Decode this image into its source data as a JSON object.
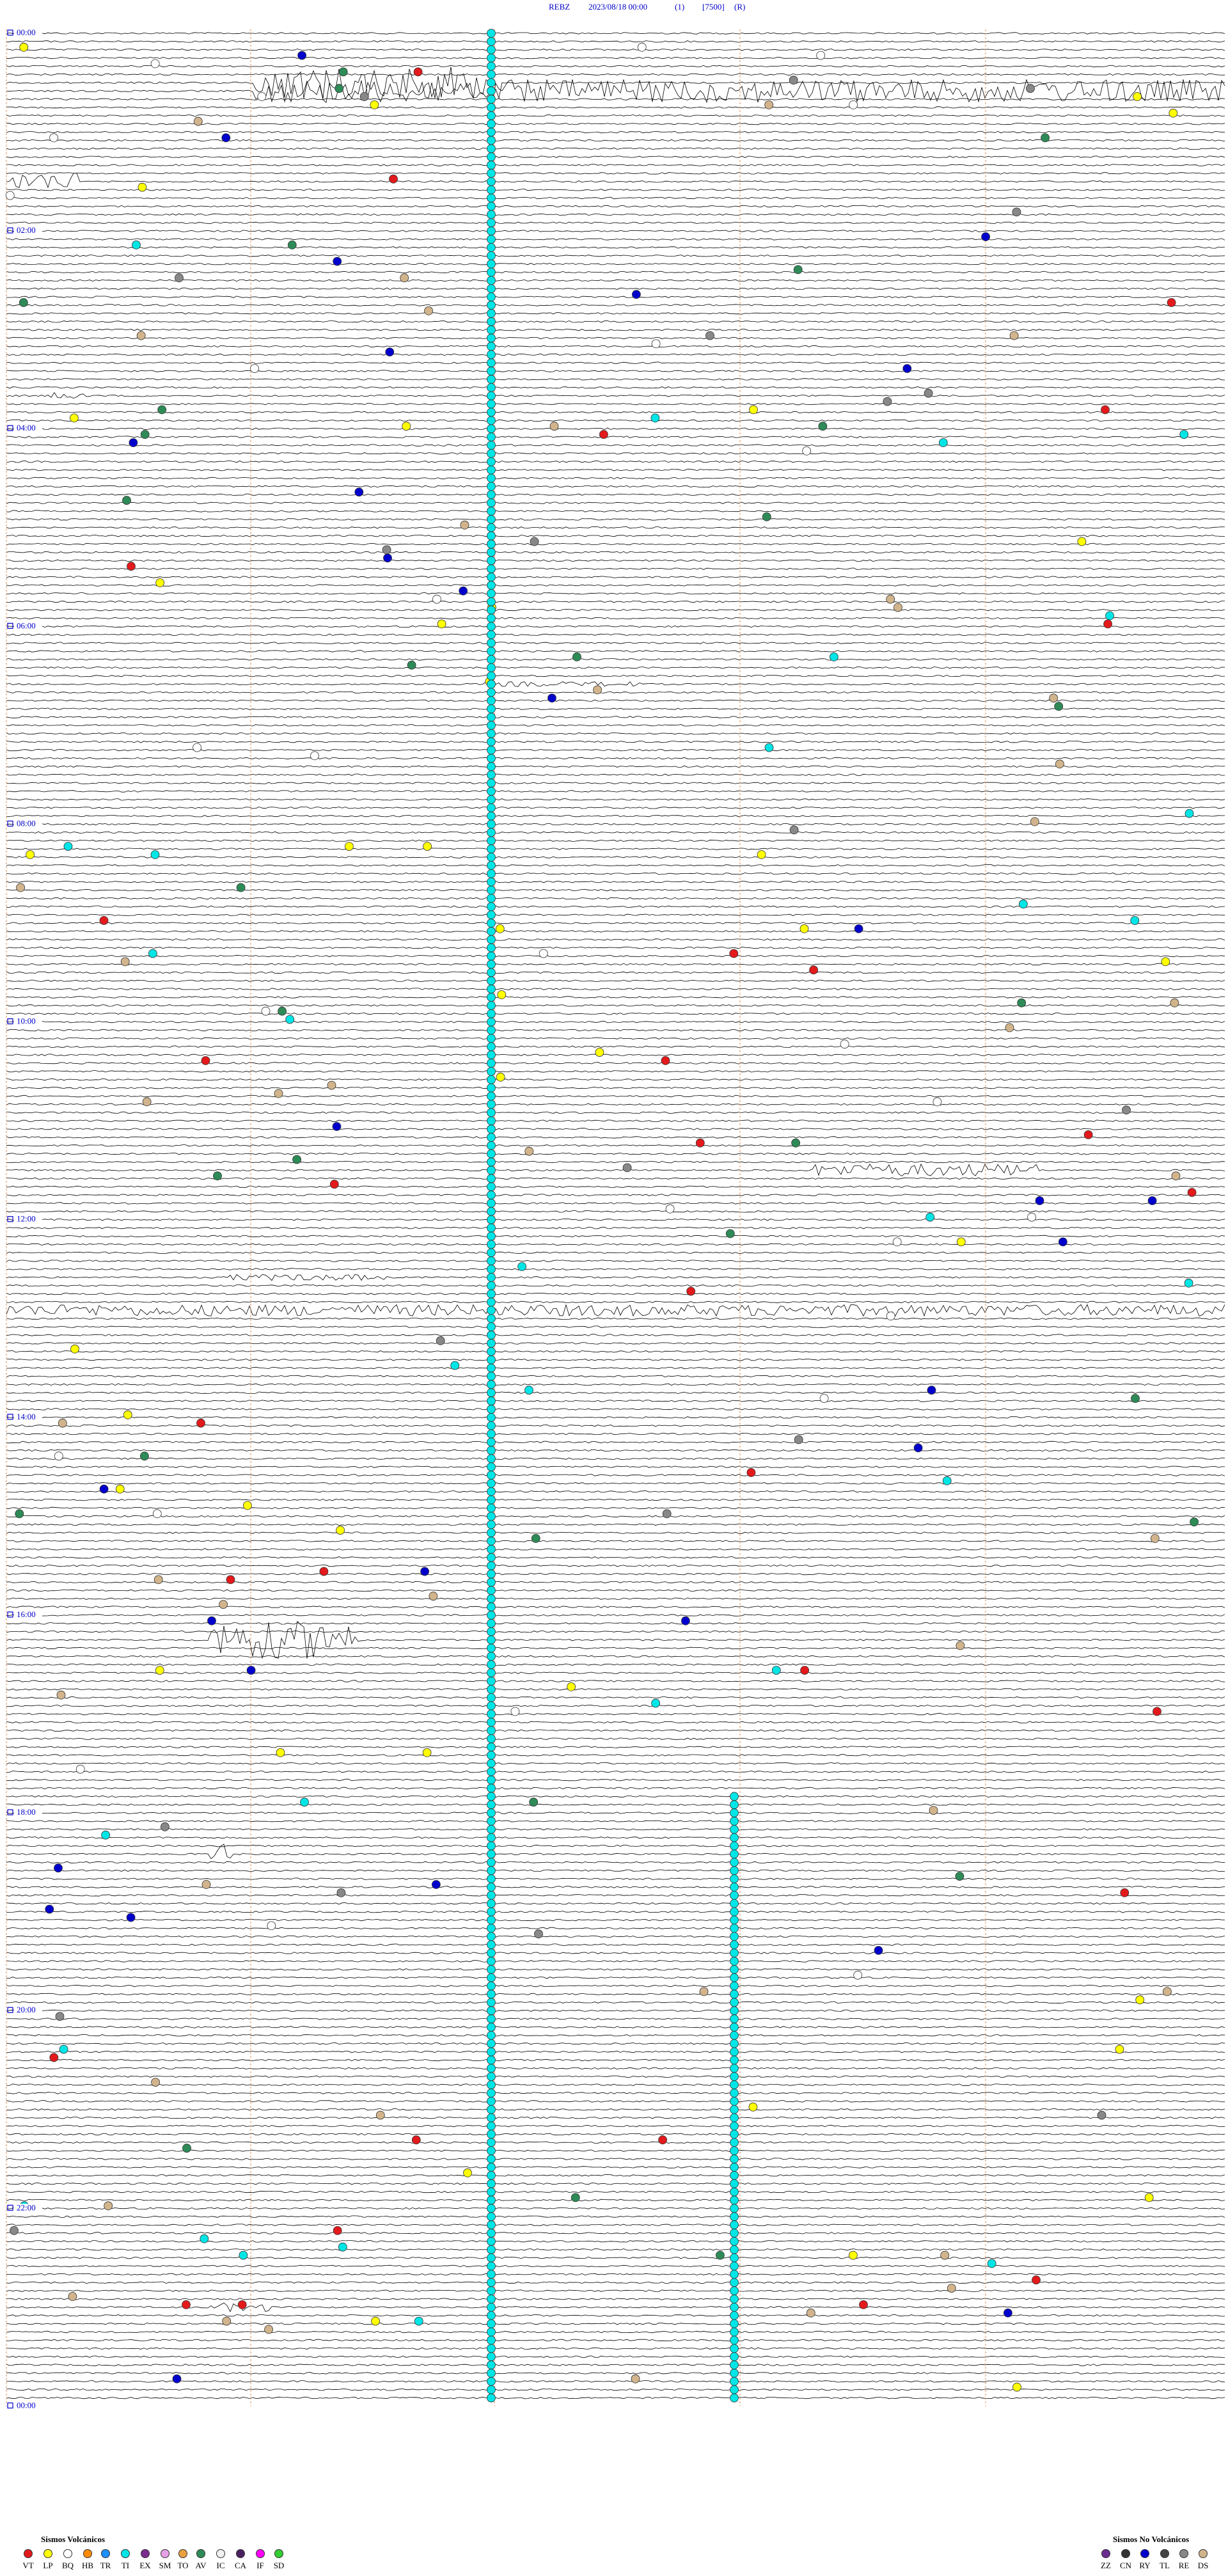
{
  "header": {
    "station": "REBZ",
    "datetime": "2023/08/18 00:00",
    "channel": "(1)",
    "scale": "[7500]",
    "mode": "(R)"
  },
  "hour_labels": [
    "00:00",
    "02:00",
    "04:00",
    "06:00",
    "08:00",
    "10:00",
    "12:00",
    "14:00",
    "16:00",
    "18:00",
    "20:00",
    "22:00",
    "00:00"
  ],
  "legend": {
    "volcanic": {
      "title": "Sismos Volcánicos",
      "codes": [
        {
          "code": "VT",
          "color": "#e31a1c"
        },
        {
          "code": "LP",
          "color": "#ffff00"
        },
        {
          "code": "BQ",
          "color": "#ffffff"
        },
        {
          "code": "HB",
          "color": "#ff8c00"
        },
        {
          "code": "TR",
          "color": "#1e90ff"
        },
        {
          "code": "TI",
          "color": "#00e5e5"
        },
        {
          "code": "EX",
          "color": "#7b2d8e"
        },
        {
          "code": "SM",
          "color": "#e6a0e6"
        },
        {
          "code": "TO",
          "color": "#e8a040"
        },
        {
          "code": "AV",
          "color": "#2e8b57"
        },
        {
          "code": "IC",
          "color": "#f0f0f0"
        },
        {
          "code": "CA",
          "color": "#4b2060"
        },
        {
          "code": "IF",
          "color": "#ff00ff"
        },
        {
          "code": "SD",
          "color": "#33cc33"
        }
      ]
    },
    "non_volcanic": {
      "title": "Sismos No Volcánicos",
      "codes": [
        {
          "code": "ZZ",
          "color": "#6a2c91"
        },
        {
          "code": "CN",
          "color": "#333333"
        },
        {
          "code": "RY",
          "color": "#0000cc"
        },
        {
          "code": "TL",
          "color": "#444444"
        },
        {
          "code": "RE",
          "color": "#888888"
        },
        {
          "code": "DS",
          "color": "#d2b48c"
        }
      ]
    }
  }
}
